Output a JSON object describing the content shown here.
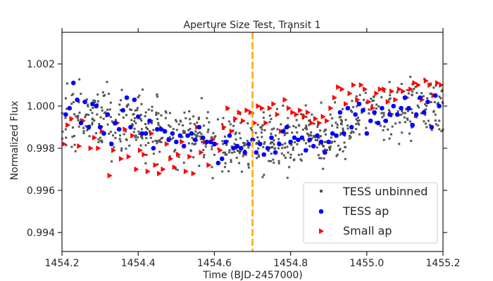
{
  "chart_data": {
    "type": "scatter",
    "title": "Aperture Size Test, Transit 1",
    "xlabel": "Time (BJD-2457000)",
    "ylabel": "Normalized Flux",
    "xlim": [
      1454.2,
      1455.2
    ],
    "ylim": [
      0.9931,
      1.0035
    ],
    "xticks": [
      1454.2,
      1454.4,
      1454.6,
      1454.8,
      1455.0,
      1455.2
    ],
    "xtick_labels": [
      "1454.2",
      "1454.4",
      "1454.6",
      "1454.8",
      "1455.0",
      "1455.2"
    ],
    "yticks": [
      0.994,
      0.996,
      0.998,
      1.0,
      1.002
    ],
    "ytick_labels": [
      "0.994",
      "0.996",
      "0.998",
      "1.000",
      "1.002"
    ],
    "grid": false,
    "legend_position": "bottom-right",
    "colors": {
      "unbinned": "#555555",
      "ap": "#0000ff",
      "small_ap": "#ff0000",
      "transit_marker": "#ffa500",
      "frame": "#262626"
    },
    "vertical_line": {
      "x": 1454.7,
      "style": "dashed"
    },
    "series": [
      {
        "name": "TESS unbinned",
        "marker": "square",
        "color": "#555555",
        "generated": {
          "count": 750,
          "seed": 7,
          "noise": 0.0013
        }
      },
      {
        "name": "TESS ap",
        "marker": "circle",
        "color": "#0000ff",
        "x": [
          1454.21,
          1454.22,
          1454.23,
          1454.24,
          1454.25,
          1454.26,
          1454.27,
          1454.28,
          1454.29,
          1454.3,
          1454.31,
          1454.32,
          1454.33,
          1454.34,
          1454.35,
          1454.36,
          1454.37,
          1454.38,
          1454.39,
          1454.4,
          1454.41,
          1454.42,
          1454.43,
          1454.44,
          1454.45,
          1454.46,
          1454.47,
          1454.48,
          1454.49,
          1454.5,
          1454.51,
          1454.52,
          1454.53,
          1454.54,
          1454.55,
          1454.56,
          1454.57,
          1454.58,
          1454.59,
          1454.6,
          1454.61,
          1454.62,
          1454.63,
          1454.64,
          1454.65,
          1454.66,
          1454.67,
          1454.68,
          1454.69,
          1454.7,
          1454.71,
          1454.72,
          1454.73,
          1454.74,
          1454.75,
          1454.76,
          1454.77,
          1454.78,
          1454.79,
          1454.8,
          1454.81,
          1454.82,
          1454.83,
          1454.84,
          1454.85,
          1454.86,
          1454.87,
          1454.88,
          1454.89,
          1454.9,
          1454.91,
          1454.92,
          1454.93,
          1454.94,
          1454.95,
          1454.96,
          1454.97,
          1454.98,
          1454.99,
          1455.0,
          1455.01,
          1455.02,
          1455.03,
          1455.04,
          1455.05,
          1455.06,
          1455.07,
          1455.08,
          1455.09,
          1455.1,
          1455.11,
          1455.12,
          1455.13,
          1455.14,
          1455.15,
          1455.16,
          1455.17,
          1455.18,
          1455.19
        ],
        "y": [
          0.9996,
          0.9999,
          1.0011,
          1.0003,
          0.9992,
          1.0002,
          0.999,
          1.0001,
          1.0,
          0.999,
          0.9987,
          0.9996,
          0.9982,
          0.9992,
          0.9989,
          0.9998,
          1.0004,
          0.999,
          1.0003,
          0.9995,
          0.9987,
          0.9987,
          0.9993,
          0.998,
          0.9989,
          0.9989,
          0.9988,
          0.9984,
          0.9987,
          0.9983,
          0.9986,
          0.9981,
          0.9986,
          0.9987,
          0.9984,
          0.999,
          0.9985,
          0.9983,
          0.9983,
          0.9982,
          0.9973,
          0.9975,
          0.9983,
          0.9986,
          0.998,
          0.9981,
          0.998,
          0.9978,
          0.9982,
          0.9984,
          0.9978,
          0.9982,
          0.9977,
          0.998,
          0.9985,
          0.9978,
          0.9982,
          0.9988,
          0.999,
          0.9983,
          0.9985,
          0.9984,
          0.9985,
          0.9979,
          0.9984,
          0.9981,
          0.9986,
          0.9983,
          0.9978,
          0.9983,
          0.9987,
          0.9986,
          0.9997,
          0.9987,
          0.9999,
          0.999,
          0.9996,
          1.0001,
          0.9998,
          0.9987,
          0.9993,
          0.9997,
          0.9992,
          0.9999,
          0.9993,
          0.9996,
          1.0,
          0.9996,
          0.9999,
          1.0004,
          0.9999,
          0.9991,
          0.9996,
          1.0004,
          0.9997,
          1.0002,
          0.999,
          1.0005,
          1.0
        ]
      },
      {
        "name": "Small ap",
        "marker": "triangle-right",
        "color": "#ff0000",
        "x": [
          1454.205,
          1454.215,
          1454.225,
          1454.245,
          1454.255,
          1454.275,
          1454.285,
          1454.295,
          1454.305,
          1454.325,
          1454.335,
          1454.345,
          1454.355,
          1454.365,
          1454.375,
          1454.385,
          1454.395,
          1454.405,
          1454.415,
          1454.425,
          1454.435,
          1454.445,
          1454.455,
          1454.465,
          1454.475,
          1454.485,
          1454.495,
          1454.505,
          1454.515,
          1454.525,
          1454.535,
          1454.545,
          1454.555,
          1454.565,
          1454.575,
          1454.585,
          1454.595,
          1454.605,
          1454.615,
          1454.625,
          1454.635,
          1454.645,
          1454.655,
          1454.665,
          1454.675,
          1454.685,
          1454.695,
          1454.705,
          1454.715,
          1454.725,
          1454.735,
          1454.745,
          1454.755,
          1454.765,
          1454.775,
          1454.785,
          1454.795,
          1454.805,
          1454.815,
          1454.825,
          1454.835,
          1454.845,
          1454.855,
          1454.865,
          1454.875,
          1454.885,
          1454.895,
          1454.905,
          1454.915,
          1454.925,
          1454.935,
          1454.945,
          1454.955,
          1454.965,
          1454.975,
          1454.985,
          1454.995,
          1455.005,
          1455.015,
          1455.025,
          1455.035,
          1455.045,
          1455.055,
          1455.065,
          1455.075,
          1455.085,
          1455.095,
          1455.105,
          1455.115,
          1455.125,
          1455.135,
          1455.145,
          1455.155,
          1455.165,
          1455.175,
          1455.185,
          1455.195
        ],
        "y": [
          0.9982,
          0.9991,
          0.9994,
          0.9981,
          0.9993,
          0.998,
          0.9985,
          0.998,
          0.9988,
          0.9967,
          0.9979,
          0.9992,
          0.9975,
          0.9989,
          0.9976,
          0.9986,
          0.997,
          0.9979,
          0.9977,
          0.9969,
          0.9987,
          0.9972,
          0.9968,
          0.997,
          0.9982,
          0.9975,
          0.9971,
          0.9977,
          0.9983,
          0.9969,
          0.9976,
          0.9968,
          0.999,
          0.9978,
          0.9983,
          0.9972,
          0.9984,
          0.9982,
          0.9979,
          0.999,
          0.9999,
          0.9988,
          0.9994,
          0.9997,
          0.9993,
          0.9998,
          0.9997,
          0.9992,
          1.0,
          0.9999,
          0.9992,
          0.9999,
          1.0001,
          0.9996,
          0.9988,
          1.0003,
          0.9999,
          0.9997,
          0.9996,
          0.9998,
          0.9995,
          0.9997,
          0.9992,
          0.9994,
          0.9992,
          0.9995,
          0.9993,
          0.9999,
          1.0004,
          1.0009,
          1.0008,
          1.0001,
          1.0006,
          1.001,
          1.0003,
          1.001,
          1.0008,
          1.0002,
          0.9999,
          1.0006,
          1.0008,
          1.0008,
          1.0002,
          1.0007,
          1.0003,
          1.0008,
          1.0007,
          1.0004,
          1.0008,
          1.0011,
          1.001,
          1.0003,
          1.0012,
          1.001,
          1.0005,
          1.0011,
          1.001
        ]
      }
    ]
  }
}
